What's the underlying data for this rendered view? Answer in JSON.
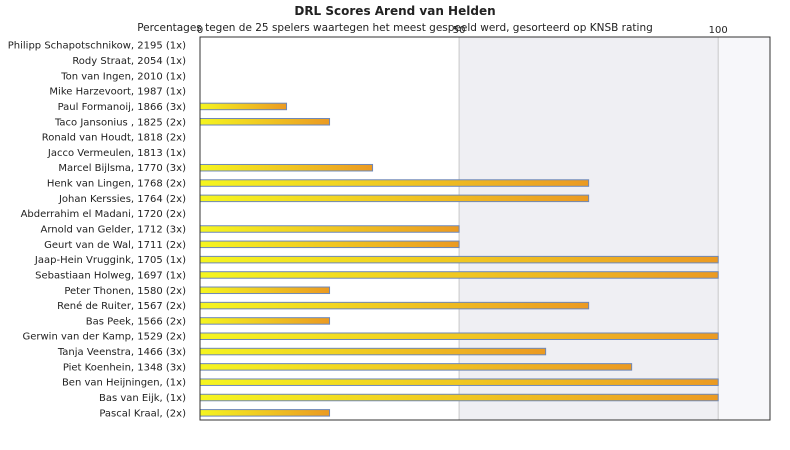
{
  "chart_data": {
    "type": "bar",
    "orientation": "horizontal",
    "title": "DRL Scores Arend van Helden",
    "subtitle": "Percentages tegen de 25 spelers waartegen het meest gespeeld werd, gesorteerd op KNSB rating",
    "xlim": [
      0,
      110
    ],
    "xticks": [
      0,
      50,
      100
    ],
    "tick_position": "top",
    "grid": true,
    "categories": [
      "Philipp Schapotschnikow, 2195 (1x)",
      "Rody Straat, 2054 (1x)",
      "Ton van Ingen, 2010 (1x)",
      "Mike Harzevoort, 1987 (1x)",
      "Paul Formanoij, 1866 (3x)",
      "Taco Jansonius , 1825 (2x)",
      "Ronald van Houdt, 1818 (2x)",
      "Jacco Vermeulen, 1813 (1x)",
      "Marcel Bijlsma, 1770 (3x)",
      "Henk van Lingen, 1768 (2x)",
      "Johan Kerssies, 1764 (2x)",
      "Abderrahim el Madani, 1720 (2x)",
      "Arnold van Gelder, 1712 (3x)",
      "Geurt van de Wal, 1711 (2x)",
      "Jaap-Hein Vruggink, 1705 (1x)",
      "Sebastiaan Holweg, 1697 (1x)",
      "Peter Thonen, 1580 (2x)",
      "René de Ruiter, 1567 (2x)",
      "Bas Peek, 1566 (2x)",
      "Gerwin van der Kamp, 1529 (2x)",
      "Tanja Veenstra, 1466 (3x)",
      "Piet Koenhein, 1348 (3x)",
      "Ben van Heijningen,  (1x)",
      "Bas van Eijk,  (1x)",
      "Pascal Kraal,  (2x)"
    ],
    "values": [
      0,
      0,
      0,
      0,
      16.7,
      25,
      0,
      0,
      33.3,
      75,
      75,
      0,
      50,
      50,
      100,
      100,
      25,
      75,
      25,
      100,
      66.7,
      83.3,
      100,
      100,
      25
    ],
    "colors": {
      "bar_start": "#f5f520",
      "bar_end": "#eb9a22",
      "bar_stroke": "#6e88b8",
      "band_shade": "#efeff3",
      "band_light": "#f7f7fa",
      "grid": "#c8c8c8",
      "axis": "#333333"
    }
  }
}
